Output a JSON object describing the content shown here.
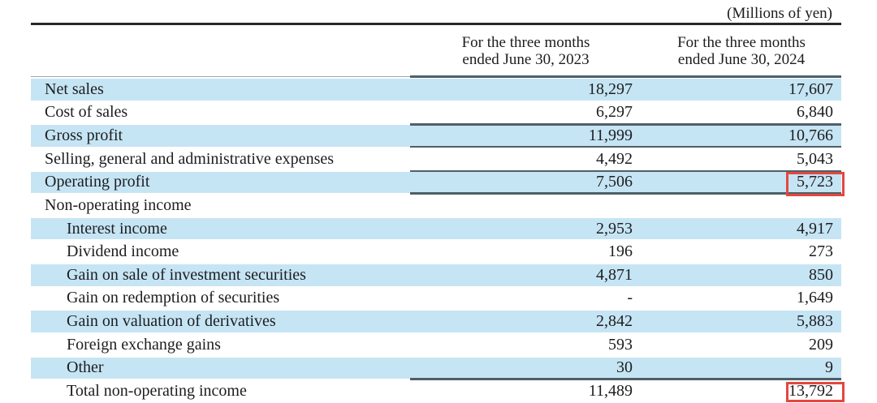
{
  "unit_note": "(Millions of yen)",
  "col_headers": {
    "col_2023": {
      "line1": "For the three months",
      "line2": "ended June 30, 2023"
    },
    "col_2024": {
      "line1": "For the three months",
      "line2": "ended June 30, 2024"
    }
  },
  "rows": [
    {
      "label": "Net sales",
      "v2023": "18,297",
      "v2024": "17,607"
    },
    {
      "label": "Cost of sales",
      "v2023": "6,297",
      "v2024": "6,840"
    },
    {
      "label": "Gross profit",
      "v2023": "11,999",
      "v2024": "10,766"
    },
    {
      "label": "Selling, general and administrative expenses",
      "v2023": "4,492",
      "v2024": "5,043"
    },
    {
      "label": "Operating profit",
      "v2023": "7,506",
      "v2024": "5,723"
    },
    {
      "label": "Non-operating income",
      "v2023": "",
      "v2024": ""
    },
    {
      "label": "Interest income",
      "v2023": "2,953",
      "v2024": "4,917"
    },
    {
      "label": "Dividend income",
      "v2023": "196",
      "v2024": "273"
    },
    {
      "label": "Gain on sale of investment securities",
      "v2023": "4,871",
      "v2024": "850"
    },
    {
      "label": "Gain on redemption of securities",
      "v2023": "-",
      "v2024": "1,649"
    },
    {
      "label": "Gain on valuation of derivatives",
      "v2023": "2,842",
      "v2024": "5,883"
    },
    {
      "label": "Foreign exchange gains",
      "v2023": "593",
      "v2024": "209"
    },
    {
      "label": "Other",
      "v2023": "30",
      "v2024": "9"
    },
    {
      "label": "Total non-operating income",
      "v2023": "11,489",
      "v2024": "13,792"
    }
  ],
  "annotations": {
    "highlighted_values_2024": [
      "5,723",
      "13,792"
    ],
    "highlighted_rows": [
      "Operating profit",
      "Total non-operating income"
    ]
  },
  "colors": {
    "row_highlight_blue": "#c6e5f4",
    "annotation_red": "#e4473f",
    "rule_dark": "#4f5f68",
    "top_rule_black": "#26282a"
  }
}
